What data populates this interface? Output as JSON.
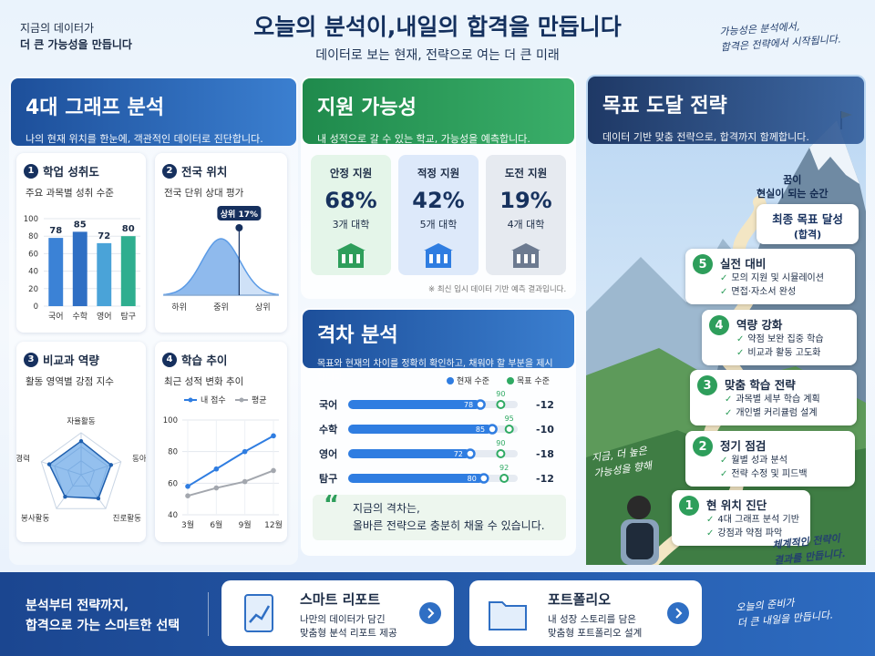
{
  "header": {
    "tagline": [
      "지금의 데이터가",
      "더 큰 가능성을 만듭니다"
    ],
    "title": "오늘의 분석이,내일의 합격을 만듭니다",
    "subtitle": "데이터로 보는 현재, 전략으로 여는 더 큰 미래",
    "note": [
      "가능성은 분석에서,",
      "합격은 전략에서 시작됩니다."
    ]
  },
  "analysis": {
    "title": "4대 그래프 분석",
    "description": "나의 현재 위치를 한눈에, 객관적인 데이터로 진단합니다.",
    "achievement": {
      "number": 1,
      "title": "학업 성취도",
      "subtitle": "주요 과목별 성취 수준",
      "chart": {
        "type": "bar",
        "categories": [
          "국어",
          "수학",
          "영어",
          "탐구"
        ],
        "values": [
          78,
          85,
          72,
          80
        ],
        "colors": [
          "#3b82d6",
          "#2f6fc4",
          "#4aa3d8",
          "#2fae8f"
        ],
        "ylim": [
          0,
          100
        ],
        "yticks": [
          0,
          20,
          40,
          60,
          80,
          100
        ],
        "grid": true
      }
    },
    "position": {
      "number": 2,
      "title": "전국 위치",
      "subtitle": "전국 단위 상대 평가",
      "chart": {
        "type": "distribution",
        "categories": [
          "하위",
          "중위",
          "상위"
        ],
        "marker": {
          "value": 17,
          "label": "상위 17%"
        },
        "color": "#5b9be6"
      }
    },
    "extracurricular": {
      "number": 3,
      "title": "비교과 역량",
      "subtitle": "활동 영역별 강점 지수",
      "chart": {
        "type": "radar",
        "categories": [
          "자율활동",
          "동아리",
          "진로활동",
          "봉사활동",
          "수상경력"
        ],
        "values": [
          80,
          75,
          70,
          65,
          80
        ],
        "rlim": [
          0,
          100
        ],
        "color": "#3d8de0"
      }
    },
    "trend": {
      "number": 4,
      "title": "학습 추이",
      "subtitle": "최근 성적 변화 추이",
      "chart": {
        "type": "line",
        "categories": [
          "3월",
          "6월",
          "9월",
          "12월"
        ],
        "series": [
          {
            "name": "내 점수",
            "color": "#2f7de1",
            "values": [
              58,
              69,
              80,
              90
            ]
          },
          {
            "name": "평균",
            "color": "#a3a7ae",
            "values": [
              52,
              57,
              61,
              68
            ]
          }
        ],
        "ylim": [
          40,
          100
        ],
        "yticks": [
          40,
          60,
          80,
          100
        ],
        "grid": true
      }
    }
  },
  "admission": {
    "title": "지원 가능성",
    "description": "내 성적으로 갈 수 있는 학교, 가능성을 예측합니다.",
    "cards": [
      {
        "label": "안정 지원",
        "rate": "68%",
        "count": "3개 대학",
        "color": "#2e9e5b"
      },
      {
        "label": "적정 지원",
        "rate": "42%",
        "count": "5개 대학",
        "color": "#2f7de1"
      },
      {
        "label": "도전 지원",
        "rate": "19%",
        "count": "4개 대학",
        "color": "#6c7a90"
      }
    ],
    "note": "※ 최신 입시 데이터 기반 예측 결과입니다."
  },
  "gap": {
    "title": "격차 분석",
    "description": "목표와 현재의 차이를 정확히 확인하고, 채워야 할 부분을 제시합니다.",
    "chart": {
      "type": "dumbbell",
      "categories": [
        "국어",
        "수학",
        "영어",
        "탐구"
      ],
      "series": [
        {
          "name": "현재 수준",
          "color": "#2f7de1",
          "values": [
            78,
            85,
            72,
            80
          ]
        },
        {
          "name": "목표 수준",
          "color": "#2faa63",
          "values": [
            90,
            95,
            90,
            92
          ]
        }
      ],
      "gaps": [
        -12,
        -10,
        -18,
        -12
      ],
      "xlim": [
        0,
        100
      ]
    },
    "quote": [
      "지금의 격차는,",
      "올바른 전략으로 충분히 채울 수 있습니다."
    ]
  },
  "strategy": {
    "title": "목표 도달 전략",
    "description": "데이터 기반 맞춤 전략으로, 합격까지 함께합니다.",
    "goal": {
      "caption": [
        "꿈이",
        "현실이 되는 순간"
      ],
      "title": "최종 목표 달성",
      "detail": "(합격)"
    },
    "steps": [
      {
        "number": 5,
        "title": "실전 대비",
        "items": [
          "모의 지원 및 시뮬레이션",
          "면접·자소서 완성"
        ]
      },
      {
        "number": 4,
        "title": "역량 강화",
        "items": [
          "약점 보완 집중 학습",
          "비교과 활동 고도화"
        ]
      },
      {
        "number": 3,
        "title": "맞춤 학습 전략",
        "items": [
          "과목별 세부 학습 계획",
          "개인별 커리큘럼 설계"
        ]
      },
      {
        "number": 2,
        "title": "정기 점검",
        "items": [
          "월별 성과 분석",
          "전략 수정 및 피드백"
        ]
      },
      {
        "number": 1,
        "title": "현 위치 진단",
        "items": [
          "4대 그래프 분석 기반",
          "강점과 약점 파악"
        ]
      }
    ],
    "notes": [
      [
        "지금, 더 높은",
        "가능성을 향해"
      ],
      [
        "체계적인 전략이",
        "결과를 만듭니다."
      ]
    ]
  },
  "footer": {
    "slogan": [
      "분석부터 전략까지,",
      "합격으로 가는 스마트한 선택"
    ],
    "cards": [
      {
        "title": "스마트 리포트",
        "lines": [
          "나만의 데이터가 담긴",
          "맞춤형 분석 리포트 제공"
        ]
      },
      {
        "title": "포트폴리오",
        "lines": [
          "내 성장 스토리를 담은",
          "맞춤형 포트폴리오 설계"
        ]
      }
    ],
    "note": [
      "오늘의 준비가",
      "더 큰 내일을 만듭니다."
    ]
  }
}
